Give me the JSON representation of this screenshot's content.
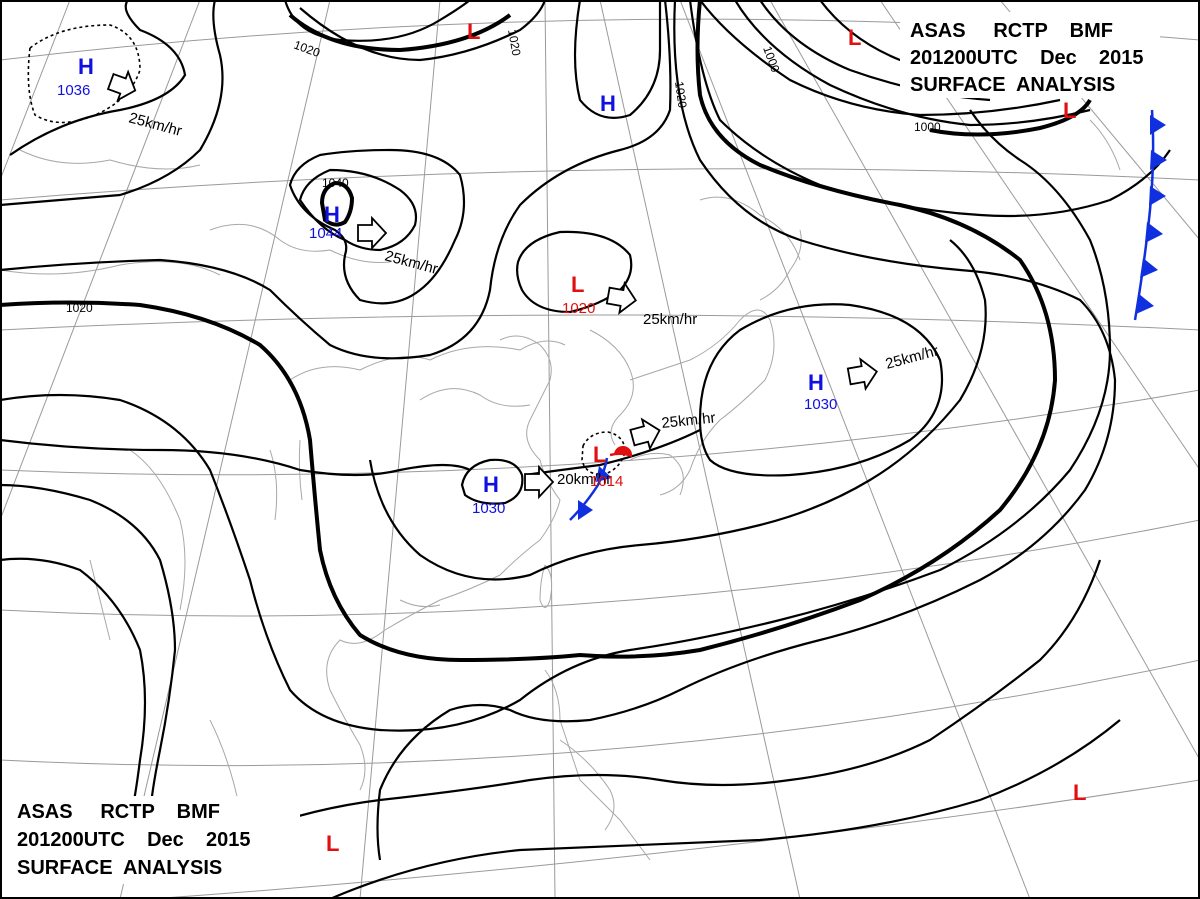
{
  "titles": {
    "top_right": {
      "line1": "ASAS     RCTP    BMF",
      "line2": "201200UTC    Dec    2015",
      "line3": "SURFACE  ANALYSIS"
    },
    "bottom_left": {
      "line1": "ASAS     RCTP    BMF",
      "line2": "201200UTC    Dec    2015",
      "line3": "SURFACE  ANALYSIS"
    }
  },
  "colors": {
    "high": "#1010e0",
    "low": "#e01010",
    "isobar": "#000000",
    "grid": "#9a9a9a",
    "coast": "#a8a8a8",
    "cold_front": "#1030e0",
    "warm_front": "#e01010"
  },
  "pressure_centers": [
    {
      "id": "h1",
      "letter": "H",
      "value": "1036",
      "color": "#1010e0"
    },
    {
      "id": "h2",
      "letter": "H",
      "value": "1044",
      "color": "#1010e0"
    },
    {
      "id": "h3",
      "letter": "H",
      "value": "",
      "color": "#1010e0"
    },
    {
      "id": "h4",
      "letter": "H",
      "value": "1030",
      "color": "#1010e0"
    },
    {
      "id": "h5",
      "letter": "H",
      "value": "1030",
      "color": "#1010e0"
    },
    {
      "id": "l1",
      "letter": "L",
      "value": "1020",
      "color": "#e01010"
    },
    {
      "id": "l2",
      "letter": "L",
      "value": "1014",
      "color": "#e01010"
    },
    {
      "id": "l3",
      "letter": "L",
      "value": "",
      "color": "#e01010"
    },
    {
      "id": "l4",
      "letter": "L",
      "value": "",
      "color": "#e01010"
    },
    {
      "id": "l5",
      "letter": "L",
      "value": "",
      "color": "#e01010"
    },
    {
      "id": "l6",
      "letter": "L",
      "value": "",
      "color": "#e01010"
    },
    {
      "id": "l7",
      "letter": "L",
      "value": "",
      "color": "#e01010"
    }
  ],
  "motion": [
    {
      "id": "m1",
      "speed": "25km/hr"
    },
    {
      "id": "m2",
      "speed": "25km/hr"
    },
    {
      "id": "m3",
      "speed": "25km/hr"
    },
    {
      "id": "m4",
      "speed": "25km/hr"
    },
    {
      "id": "m5",
      "speed": "25km/hr"
    },
    {
      "id": "m6",
      "speed": "20km/hr"
    }
  ],
  "isobar_labels": [
    {
      "id": "i1",
      "text": "1020"
    },
    {
      "id": "i2",
      "text": "1020"
    },
    {
      "id": "i3",
      "text": "1020"
    },
    {
      "id": "i4",
      "text": "1040"
    },
    {
      "id": "i5",
      "text": "1000"
    },
    {
      "id": "i6",
      "text": "1000"
    },
    {
      "id": "i7",
      "text": "1020"
    }
  ]
}
